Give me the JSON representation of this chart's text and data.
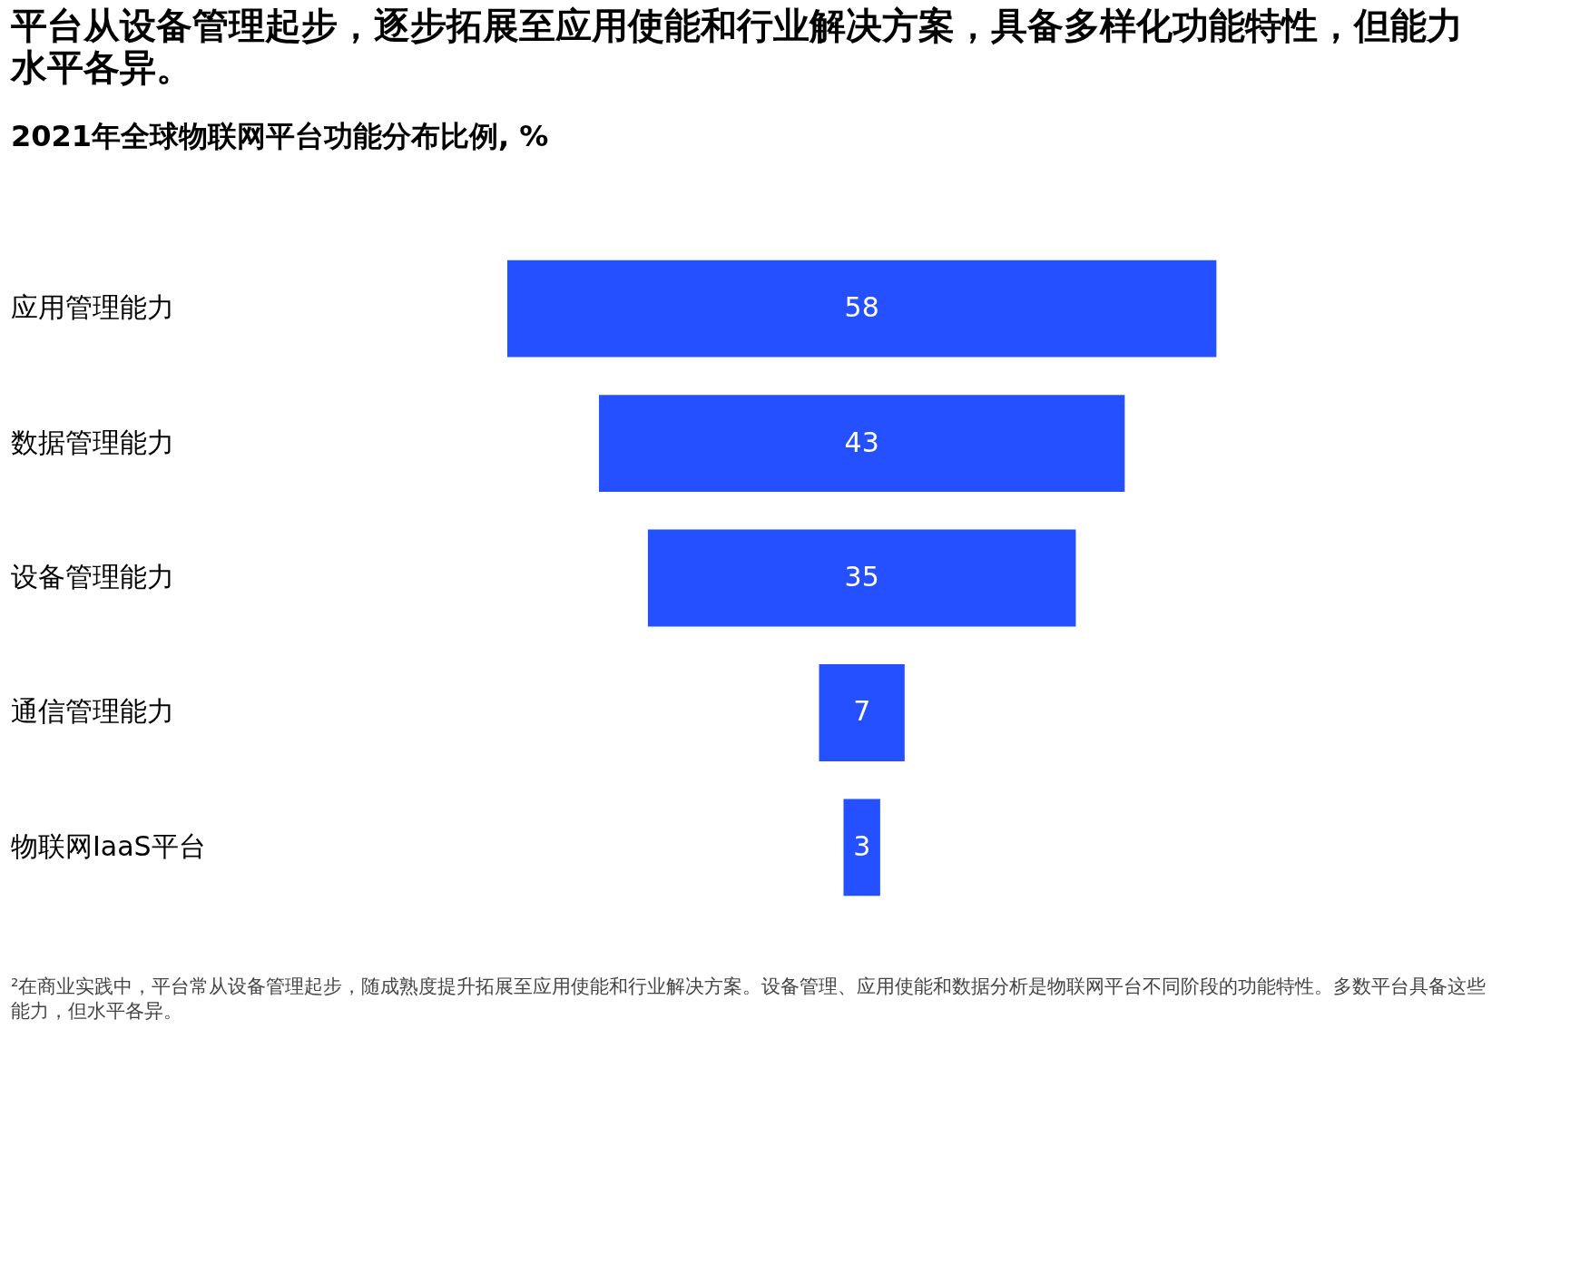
{
  "chart_data": {
    "type": "other",
    "title": "平台从设备管理起步，逐步拓展至应用使能和行业解决方案，具备多样化功能特性，但能力水平各异。",
    "subtitle": "2021年全球物联网平台功能分布比例, %",
    "categories": [
      "应用管理能力",
      "数据管理能力",
      "设备管理能力",
      "通信管理能力",
      "物联网IaaS平台"
    ],
    "values": [
      58,
      43,
      35,
      7,
      3
    ],
    "color": "#2450ff",
    "data_labels": true,
    "annotations": [
      "²在商业实践中，平台常从设备管理起步，随成熟度提升拓展至应用使能和行业解决方案。设备管理、应用使能和数据分析是物联网平台不同阶段的功能特性。多数平台具备这些能力，但水平各异。"
    ]
  }
}
